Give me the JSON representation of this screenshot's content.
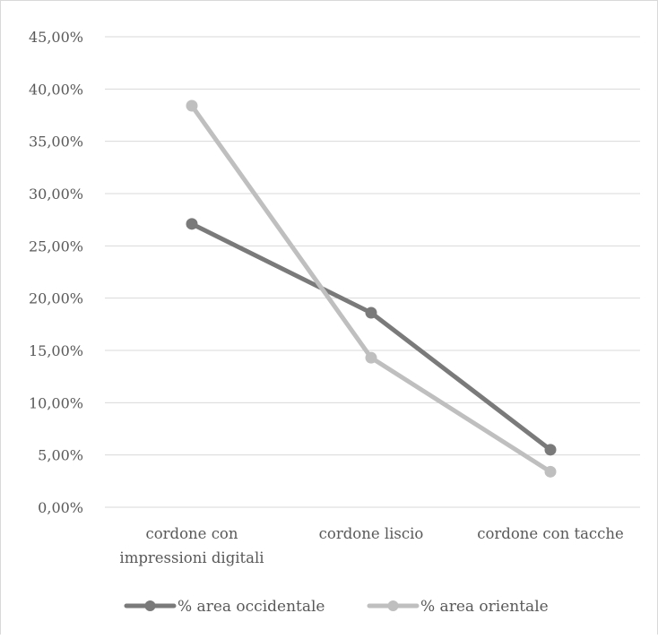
{
  "chart_data": {
    "type": "line",
    "title": "",
    "xlabel": "",
    "ylabel": "",
    "categories": [
      [
        "cordone con",
        "impressioni digitali"
      ],
      [
        "cordone liscio"
      ],
      [
        "cordone con tacche"
      ]
    ],
    "y_ticks": [
      "0,00%",
      "5,00%",
      "10,00%",
      "15,00%",
      "20,00%",
      "25,00%",
      "30,00%",
      "35,00%",
      "40,00%",
      "45,00%"
    ],
    "ylim": [
      0,
      45
    ],
    "grid": true,
    "legend_position": "bottom",
    "series": [
      {
        "name": "% area occidentale",
        "values": [
          27.1,
          18.6,
          5.5
        ],
        "color": "#7a7a7a"
      },
      {
        "name": "% area orientale",
        "values": [
          38.4,
          14.3,
          3.4
        ],
        "color": "#bfbfbf"
      }
    ]
  }
}
